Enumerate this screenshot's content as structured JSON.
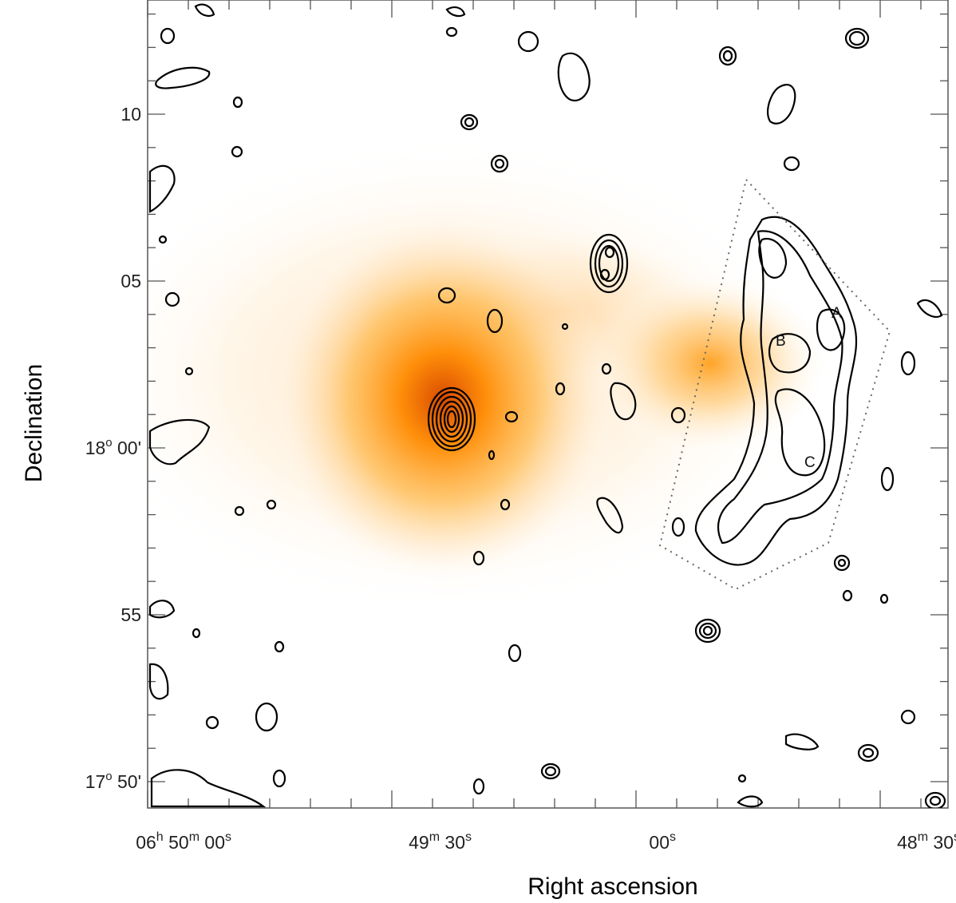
{
  "chart_data": {
    "type": "contour",
    "xlabel": "Right ascension",
    "ylabel": "Declination",
    "x_ticks": [
      {
        "ra_sec": 0,
        "label_h": "06",
        "label_m": "50",
        "label_s": "00"
      },
      {
        "ra_sec": -30,
        "label_h": "",
        "label_m": "49",
        "label_s": "30"
      },
      {
        "ra_sec": -60,
        "label_h": "",
        "label_m": "",
        "label_s": "00"
      },
      {
        "ra_sec": -90,
        "label_h": "",
        "label_m": "48",
        "label_s": "30"
      }
    ],
    "y_ticks": [
      {
        "dec_arcmin": 10,
        "deg": "",
        "min": "10"
      },
      {
        "dec_arcmin": 5,
        "deg": "",
        "min": "05"
      },
      {
        "dec_arcmin": 0,
        "deg": "18",
        "min": "00"
      },
      {
        "dec_arcmin": -5,
        "deg": "",
        "min": "55"
      },
      {
        "dec_arcmin": -10,
        "deg": "17",
        "min": "50"
      }
    ],
    "units": {
      "h": "h",
      "m": "m",
      "s": "s",
      "deg": "o",
      "arcmin": "'"
    },
    "emission_color_scale": [
      "#ffffff",
      "#ffe6c2",
      "#ffb23a",
      "#ff8a00",
      "#d94a00"
    ],
    "region_labels": [
      "A",
      "B",
      "C"
    ]
  }
}
